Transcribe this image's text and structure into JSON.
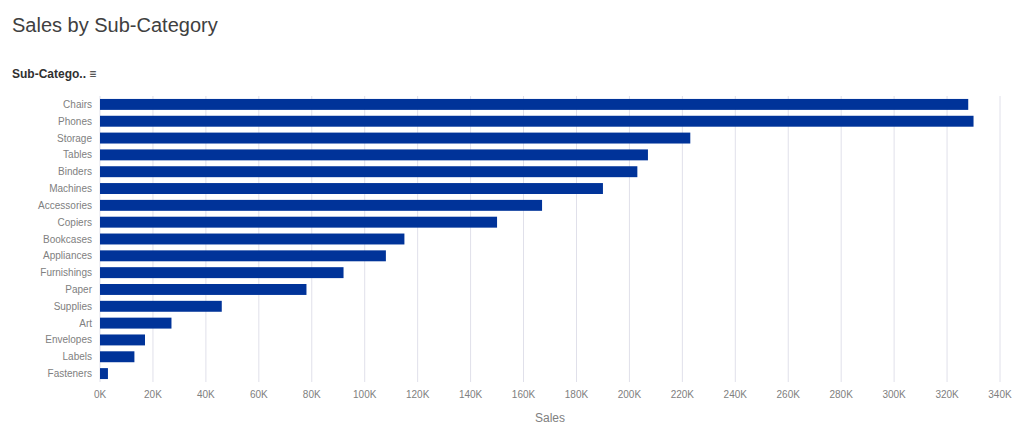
{
  "chart_data": {
    "type": "bar",
    "orientation": "horizontal",
    "title": "Sales by Sub-Category",
    "xlabel": "Sales",
    "ylabel": "Sub-Catego.. ≡",
    "categories": [
      "Chairs",
      "Phones",
      "Storage",
      "Tables",
      "Binders",
      "Machines",
      "Accessories",
      "Copiers",
      "Bookcases",
      "Appliances",
      "Furnishings",
      "Paper",
      "Supplies",
      "Art",
      "Envelopes",
      "Labels",
      "Fasteners"
    ],
    "values": [
      328000,
      330000,
      223000,
      207000,
      203000,
      190000,
      167000,
      150000,
      115000,
      108000,
      92000,
      78000,
      46000,
      27000,
      17000,
      13000,
      3000
    ],
    "color": "#003399",
    "xlim": [
      0,
      340000
    ],
    "xticks": [
      {
        "value": 0,
        "label": "0K"
      },
      {
        "value": 20000,
        "label": "20K"
      },
      {
        "value": 40000,
        "label": "40K"
      },
      {
        "value": 60000,
        "label": "60K"
      },
      {
        "value": 80000,
        "label": "80K"
      },
      {
        "value": 100000,
        "label": "100K"
      },
      {
        "value": 120000,
        "label": "120K"
      },
      {
        "value": 140000,
        "label": "140K"
      },
      {
        "value": 160000,
        "label": "160K"
      },
      {
        "value": 180000,
        "label": "180K"
      },
      {
        "value": 200000,
        "label": "200K"
      },
      {
        "value": 220000,
        "label": "220K"
      },
      {
        "value": 240000,
        "label": "240K"
      },
      {
        "value": 260000,
        "label": "260K"
      },
      {
        "value": 280000,
        "label": "280K"
      },
      {
        "value": 300000,
        "label": "300K"
      },
      {
        "value": 320000,
        "label": "320K"
      },
      {
        "value": 340000,
        "label": "340K"
      }
    ],
    "grid": true
  }
}
